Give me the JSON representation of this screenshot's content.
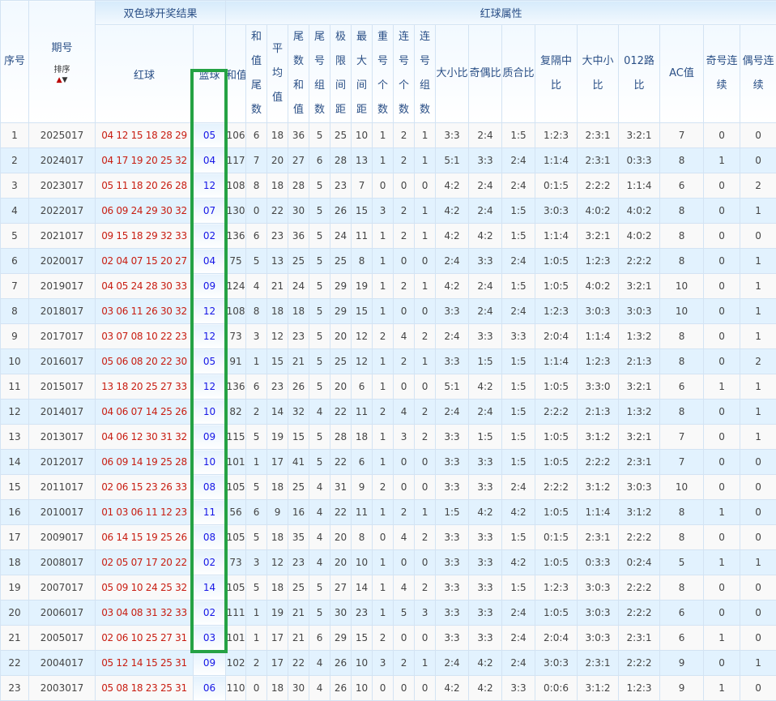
{
  "header": {
    "seq": "序号",
    "issue": "期号",
    "sort_label": "排序",
    "sort_up_icon": "arrow-up",
    "sort_down_icon": "arrow-down",
    "result_group": "双色球开奖结果",
    "attr_group": "红球属性",
    "red": "红球",
    "blue": "蓝球",
    "cols": [
      "和值",
      "和值尾数",
      "平均值",
      "尾数和值",
      "尾号组数",
      "极限间距",
      "最大间距",
      "重号个数",
      "连号个数",
      "连号组数",
      "大小比",
      "奇偶比",
      "质合比",
      "复隔中比",
      "大中小比",
      "012路比",
      "AC值",
      "奇号连续",
      "偶号连续"
    ]
  },
  "colors": {
    "red_ball": "#c81d11",
    "blue_ball": "#1616e6",
    "highlight": "#25a244",
    "header_text": "#2a4f86"
  },
  "rows": [
    [
      "1",
      "2025017",
      "04 12 15 18 28 29",
      "05",
      "106",
      "6",
      "18",
      "36",
      "5",
      "25",
      "10",
      "1",
      "2",
      "1",
      "3:3",
      "2:4",
      "1:5",
      "1:2:3",
      "2:3:1",
      "3:2:1",
      "7",
      "0",
      "0"
    ],
    [
      "2",
      "2024017",
      "04 17 19 20 25 32",
      "04",
      "117",
      "7",
      "20",
      "27",
      "6",
      "28",
      "13",
      "1",
      "2",
      "1",
      "5:1",
      "3:3",
      "2:4",
      "1:1:4",
      "2:3:1",
      "0:3:3",
      "8",
      "1",
      "0"
    ],
    [
      "3",
      "2023017",
      "05 11 18 20 26 28",
      "12",
      "108",
      "8",
      "18",
      "28",
      "5",
      "23",
      "7",
      "0",
      "0",
      "0",
      "4:2",
      "2:4",
      "2:4",
      "0:1:5",
      "2:2:2",
      "1:1:4",
      "6",
      "0",
      "2"
    ],
    [
      "4",
      "2022017",
      "06 09 24 29 30 32",
      "07",
      "130",
      "0",
      "22",
      "30",
      "5",
      "26",
      "15",
      "3",
      "2",
      "1",
      "4:2",
      "2:4",
      "1:5",
      "3:0:3",
      "4:0:2",
      "4:0:2",
      "8",
      "0",
      "1"
    ],
    [
      "5",
      "2021017",
      "09 15 18 29 32 33",
      "02",
      "136",
      "6",
      "23",
      "36",
      "5",
      "24",
      "11",
      "1",
      "2",
      "1",
      "4:2",
      "4:2",
      "1:5",
      "1:1:4",
      "3:2:1",
      "4:0:2",
      "8",
      "0",
      "0"
    ],
    [
      "6",
      "2020017",
      "02 04 07 15 20 27",
      "04",
      "75",
      "5",
      "13",
      "25",
      "5",
      "25",
      "8",
      "1",
      "0",
      "0",
      "2:4",
      "3:3",
      "2:4",
      "1:0:5",
      "1:2:3",
      "2:2:2",
      "8",
      "0",
      "1"
    ],
    [
      "7",
      "2019017",
      "04 05 24 28 30 33",
      "09",
      "124",
      "4",
      "21",
      "24",
      "5",
      "29",
      "19",
      "1",
      "2",
      "1",
      "4:2",
      "2:4",
      "1:5",
      "1:0:5",
      "4:0:2",
      "3:2:1",
      "10",
      "0",
      "1"
    ],
    [
      "8",
      "2018017",
      "03 06 11 26 30 32",
      "12",
      "108",
      "8",
      "18",
      "18",
      "5",
      "29",
      "15",
      "1",
      "0",
      "0",
      "3:3",
      "2:4",
      "2:4",
      "1:2:3",
      "3:0:3",
      "3:0:3",
      "10",
      "0",
      "1"
    ],
    [
      "9",
      "2017017",
      "03 07 08 10 22 23",
      "12",
      "73",
      "3",
      "12",
      "23",
      "5",
      "20",
      "12",
      "2",
      "4",
      "2",
      "2:4",
      "3:3",
      "3:3",
      "2:0:4",
      "1:1:4",
      "1:3:2",
      "8",
      "0",
      "1"
    ],
    [
      "10",
      "2016017",
      "05 06 08 20 22 30",
      "05",
      "91",
      "1",
      "15",
      "21",
      "5",
      "25",
      "12",
      "1",
      "2",
      "1",
      "3:3",
      "1:5",
      "1:5",
      "1:1:4",
      "1:2:3",
      "2:1:3",
      "8",
      "0",
      "2"
    ],
    [
      "11",
      "2015017",
      "13 18 20 25 27 33",
      "12",
      "136",
      "6",
      "23",
      "26",
      "5",
      "20",
      "6",
      "1",
      "0",
      "0",
      "5:1",
      "4:2",
      "1:5",
      "1:0:5",
      "3:3:0",
      "3:2:1",
      "6",
      "1",
      "1"
    ],
    [
      "12",
      "2014017",
      "04 06 07 14 25 26",
      "10",
      "82",
      "2",
      "14",
      "32",
      "4",
      "22",
      "11",
      "2",
      "4",
      "2",
      "2:4",
      "2:4",
      "1:5",
      "2:2:2",
      "2:1:3",
      "1:3:2",
      "8",
      "0",
      "1"
    ],
    [
      "13",
      "2013017",
      "04 06 12 30 31 32",
      "09",
      "115",
      "5",
      "19",
      "15",
      "5",
      "28",
      "18",
      "1",
      "3",
      "2",
      "3:3",
      "1:5",
      "1:5",
      "1:0:5",
      "3:1:2",
      "3:2:1",
      "7",
      "0",
      "1"
    ],
    [
      "14",
      "2012017",
      "06 09 14 19 25 28",
      "10",
      "101",
      "1",
      "17",
      "41",
      "5",
      "22",
      "6",
      "1",
      "0",
      "0",
      "3:3",
      "3:3",
      "1:5",
      "1:0:5",
      "2:2:2",
      "2:3:1",
      "7",
      "0",
      "0"
    ],
    [
      "15",
      "2011017",
      "02 06 15 23 26 33",
      "08",
      "105",
      "5",
      "18",
      "25",
      "4",
      "31",
      "9",
      "2",
      "0",
      "0",
      "3:3",
      "3:3",
      "2:4",
      "2:2:2",
      "3:1:2",
      "3:0:3",
      "10",
      "0",
      "0"
    ],
    [
      "16",
      "2010017",
      "01 03 06 11 12 23",
      "11",
      "56",
      "6",
      "9",
      "16",
      "4",
      "22",
      "11",
      "1",
      "2",
      "1",
      "1:5",
      "4:2",
      "4:2",
      "1:0:5",
      "1:1:4",
      "3:1:2",
      "8",
      "1",
      "0"
    ],
    [
      "17",
      "2009017",
      "06 14 15 19 25 26",
      "08",
      "105",
      "5",
      "18",
      "35",
      "4",
      "20",
      "8",
      "0",
      "4",
      "2",
      "3:3",
      "3:3",
      "1:5",
      "0:1:5",
      "2:3:1",
      "2:2:2",
      "8",
      "0",
      "0"
    ],
    [
      "18",
      "2008017",
      "02 05 07 17 20 22",
      "02",
      "73",
      "3",
      "12",
      "23",
      "4",
      "20",
      "10",
      "1",
      "0",
      "0",
      "3:3",
      "3:3",
      "4:2",
      "1:0:5",
      "0:3:3",
      "0:2:4",
      "5",
      "1",
      "1"
    ],
    [
      "19",
      "2007017",
      "05 09 10 24 25 32",
      "14",
      "105",
      "5",
      "18",
      "25",
      "5",
      "27",
      "14",
      "1",
      "4",
      "2",
      "3:3",
      "3:3",
      "1:5",
      "1:2:3",
      "3:0:3",
      "2:2:2",
      "8",
      "0",
      "0"
    ],
    [
      "20",
      "2006017",
      "03 04 08 31 32 33",
      "02",
      "111",
      "1",
      "19",
      "21",
      "5",
      "30",
      "23",
      "1",
      "5",
      "3",
      "3:3",
      "3:3",
      "2:4",
      "1:0:5",
      "3:0:3",
      "2:2:2",
      "6",
      "0",
      "0"
    ],
    [
      "21",
      "2005017",
      "02 06 10 25 27 31",
      "03",
      "101",
      "1",
      "17",
      "21",
      "6",
      "29",
      "15",
      "2",
      "0",
      "0",
      "3:3",
      "3:3",
      "2:4",
      "2:0:4",
      "3:0:3",
      "2:3:1",
      "6",
      "1",
      "0"
    ],
    [
      "22",
      "2004017",
      "05 12 14 15 25 31",
      "09",
      "102",
      "2",
      "17",
      "22",
      "4",
      "26",
      "10",
      "3",
      "2",
      "1",
      "2:4",
      "4:2",
      "2:4",
      "3:0:3",
      "2:3:1",
      "2:2:2",
      "9",
      "0",
      "1"
    ],
    [
      "23",
      "2003017",
      "05 08 18 23 25 31",
      "06",
      "110",
      "0",
      "18",
      "30",
      "4",
      "26",
      "10",
      "0",
      "0",
      "0",
      "4:2",
      "4:2",
      "3:3",
      "0:0:6",
      "3:1:2",
      "1:2:3",
      "9",
      "1",
      "0"
    ]
  ]
}
